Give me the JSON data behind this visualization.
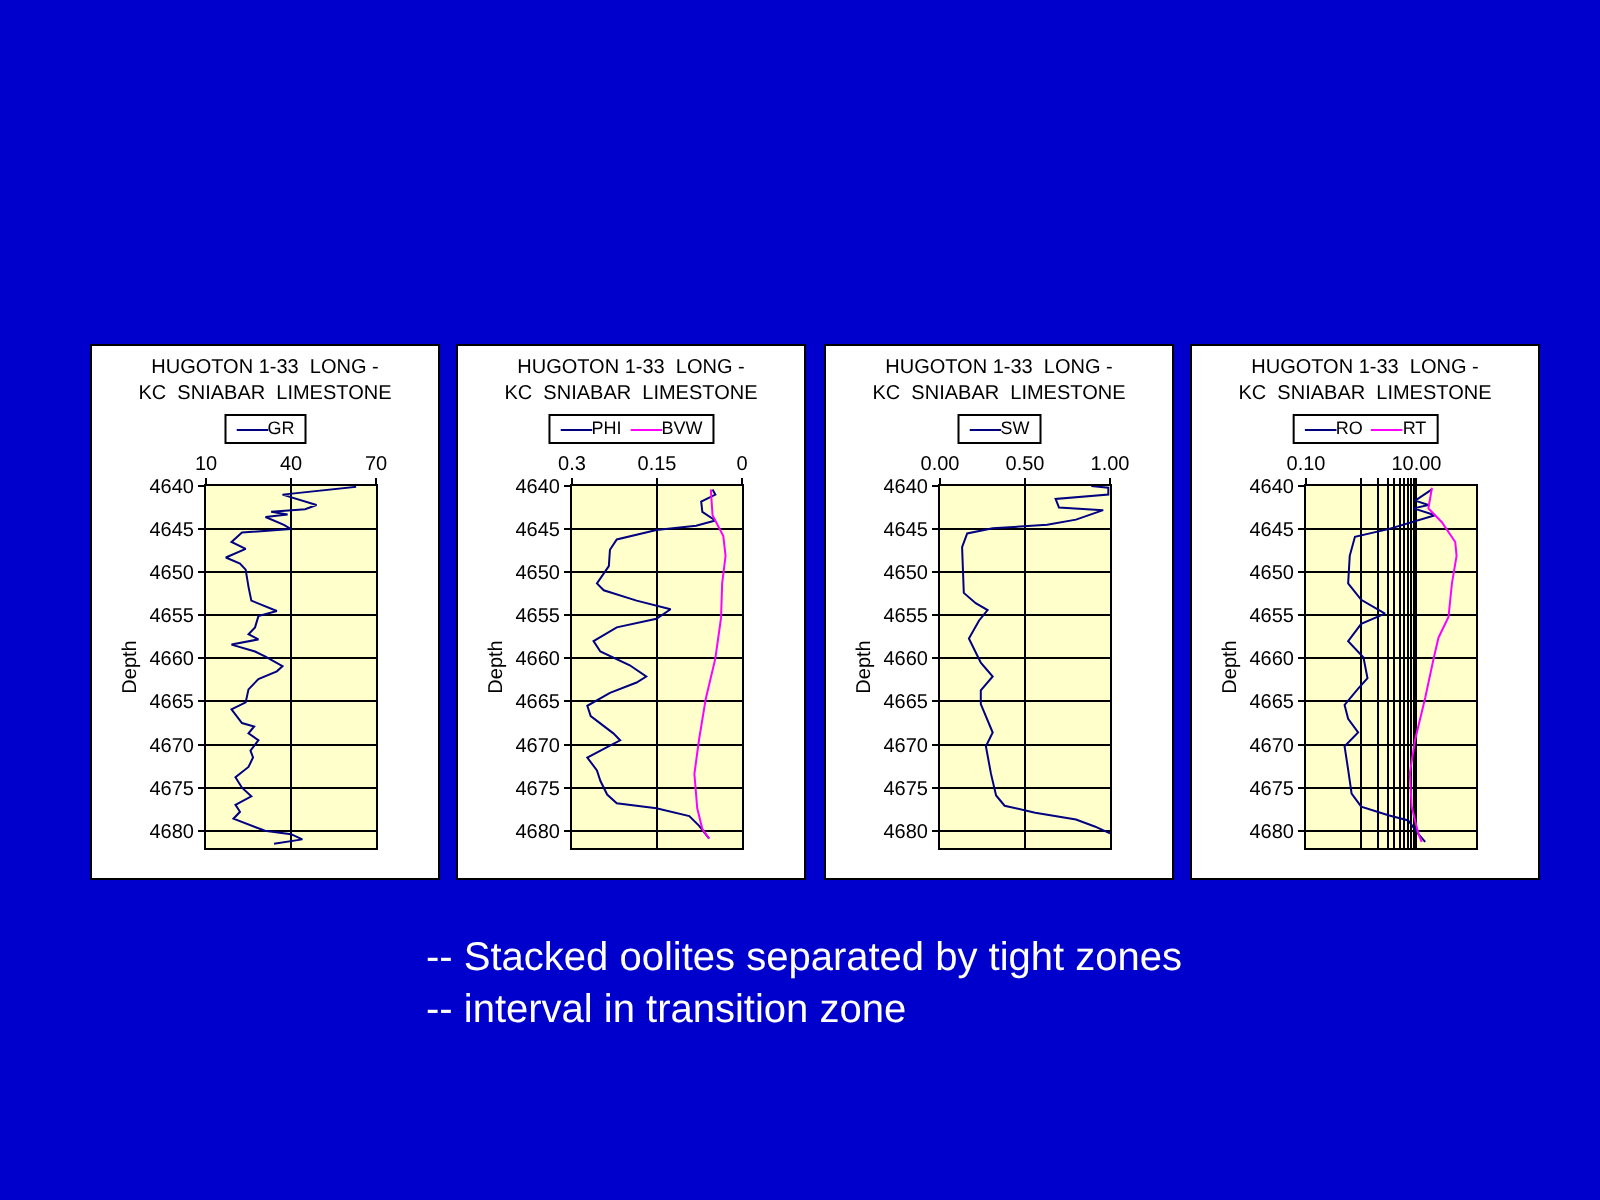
{
  "chart_data": [
    {
      "type": "line",
      "title": "HUGOTON 1-33  LONG -\nKC  SNIABAR  LIMESTONE",
      "ylabel": "Depth",
      "legend": "top",
      "grid": true,
      "xlim": [
        10,
        70
      ],
      "xticks": [
        10,
        40,
        70
      ],
      "ylim": [
        4682,
        4640
      ],
      "yticks": [
        4640,
        4645,
        4650,
        4655,
        4660,
        4665,
        4670,
        4675,
        4680
      ],
      "series": [
        {
          "name": "GR",
          "color": "#000080",
          "x": [
            63,
            37,
            49,
            45,
            33,
            38.8,
            31,
            37.5,
            40,
            22.7,
            19,
            24,
            17,
            22,
            24,
            25,
            26,
            35,
            28.5,
            27.3,
            25,
            28.5,
            19,
            27.3,
            31,
            37,
            35,
            28.5,
            25,
            24,
            19,
            22.7,
            27,
            25,
            28.5,
            25.7,
            26.6,
            25,
            20.4,
            22.7,
            26,
            20.4,
            22,
            19.7,
            30.8,
            40,
            44,
            34
          ],
          "values": [
            4640.1,
            4641,
            4642.2,
            4642.7,
            4643,
            4643.3,
            4643.6,
            4644.5,
            4645,
            4645.4,
            4646.5,
            4647.3,
            4648.3,
            4649,
            4649.7,
            4651.7,
            4653.3,
            4654.5,
            4655.1,
            4656.4,
            4657.2,
            4657.8,
            4658.4,
            4659.2,
            4659.8,
            4660.9,
            4661.5,
            4662.4,
            4663.6,
            4665.1,
            4665.9,
            4667.5,
            4667.9,
            4668.7,
            4669.5,
            4670.7,
            4671.5,
            4672.6,
            4673.8,
            4675,
            4676,
            4677,
            4677.8,
            4678.6,
            4680,
            4680.4,
            4681,
            4681.5
          ]
        }
      ]
    },
    {
      "type": "line",
      "title": "HUGOTON 1-33  LONG -\nKC  SNIABAR  LIMESTONE",
      "ylabel": "Depth",
      "legend": "top",
      "grid": true,
      "xlim": [
        0.3,
        0
      ],
      "xticks": [
        0.3,
        0.15,
        0
      ],
      "ylim": [
        4682,
        4640
      ],
      "yticks": [
        4640,
        4645,
        4650,
        4655,
        4660,
        4665,
        4670,
        4675,
        4680
      ],
      "series": [
        {
          "name": "PHI",
          "color": "#000080",
          "x": [
            0.052,
            0.047,
            0.072,
            0.07,
            0.047,
            0.081,
            0.151,
            0.221,
            0.233,
            0.235,
            0.256,
            0.244,
            0.186,
            0.126,
            0.151,
            0.221,
            0.262,
            0.25,
            0.198,
            0.169,
            0.186,
            0.233,
            0.273,
            0.267,
            0.227,
            0.215,
            0.238,
            0.273,
            0.256,
            0.25,
            0.238,
            0.221,
            0.151,
            0.093,
            0.076,
            0.058
          ],
          "values": [
            4640.4,
            4641,
            4641.8,
            4643,
            4644,
            4644.6,
            4645.1,
            4646.2,
            4647.4,
            4649.3,
            4651.3,
            4652.1,
            4653.3,
            4654.3,
            4655.4,
            4656.4,
            4658,
            4659.2,
            4660.8,
            4662.1,
            4662.8,
            4664,
            4665.5,
            4666.7,
            4668.7,
            4669.5,
            4670.3,
            4671.5,
            4673,
            4674.2,
            4675.8,
            4676.8,
            4677.4,
            4678.3,
            4679.4,
            4680.9
          ]
        },
        {
          "name": "BVW",
          "color": "#ff00ff",
          "x": [
            0.055,
            0.052,
            0.033,
            0.029,
            0.035,
            0.037,
            0.047,
            0.064,
            0.076,
            0.084,
            0.079,
            0.07,
            0.058
          ],
          "values": [
            4640.4,
            4643.4,
            4645.8,
            4648.1,
            4651.3,
            4655.3,
            4660,
            4664.7,
            4669.5,
            4673.4,
            4677.4,
            4679.8,
            4680.9
          ]
        }
      ]
    },
    {
      "type": "line",
      "title": "HUGOTON 1-33  LONG -\nKC  SNIABAR  LIMESTONE",
      "ylabel": "Depth",
      "legend": "top",
      "grid": true,
      "xlim": [
        0,
        1
      ],
      "xticks": [
        {
          "value": 0,
          "label": "0.00"
        },
        {
          "value": 0.5,
          "label": "0.50"
        },
        {
          "value": 1,
          "label": "1.00"
        }
      ],
      "ylim": [
        4682,
        4640
      ],
      "yticks": [
        4640,
        4645,
        4650,
        4655,
        4660,
        4665,
        4670,
        4675,
        4680
      ],
      "series": [
        {
          "name": "SW",
          "color": "#000080",
          "x": [
            0.89,
            0.99,
            0.99,
            0.68,
            0.7,
            0.96,
            0.8,
            0.63,
            0.31,
            0.16,
            0.13,
            0.14,
            0.21,
            0.28,
            0.23,
            0.17,
            0.24,
            0.31,
            0.24,
            0.24,
            0.31,
            0.27,
            0.3,
            0.33,
            0.38,
            0.56,
            0.8,
            0.91,
            1.0
          ],
          "values": [
            4640,
            4640.2,
            4641,
            4641.5,
            4642.5,
            4642.8,
            4643.9,
            4644.5,
            4644.9,
            4645.5,
            4647.1,
            4652.4,
            4653.6,
            4654.4,
            4655.6,
            4657.7,
            4660.5,
            4662.1,
            4663.7,
            4665.3,
            4668.6,
            4670.2,
            4673.4,
            4675.9,
            4677.1,
            4677.9,
            4678.7,
            4679.5,
            4680.3
          ]
        }
      ]
    },
    {
      "type": "line",
      "title": "HUGOTON 1-33  LONG -\nKC  SNIABAR  LIMESTONE",
      "ylabel": "Depth",
      "legend": "top",
      "grid": true,
      "log": "x",
      "xlim": [
        0.1,
        120
      ],
      "xticks": [
        {
          "value": 0.1,
          "label": "0.10"
        },
        {
          "value": 1,
          "label": null
        },
        {
          "value": 2,
          "label": null
        },
        {
          "value": 3,
          "label": null
        },
        {
          "value": 4,
          "label": null
        },
        {
          "value": 5,
          "label": null
        },
        {
          "value": 6,
          "label": null
        },
        {
          "value": 7,
          "label": null
        },
        {
          "value": 8,
          "label": null
        },
        {
          "value": 9,
          "label": null
        },
        {
          "value": 10,
          "label": "10.00"
        }
      ],
      "ylim": [
        4682,
        4640
      ],
      "yticks": [
        4640,
        4645,
        4650,
        4655,
        4660,
        4665,
        4670,
        4675,
        4680
      ],
      "series": [
        {
          "name": "RO",
          "color": "#000080",
          "x": [
            19.1,
            9.5,
            16.5,
            8.9,
            21.8,
            3.1,
            0.77,
            0.62,
            0.58,
            1.0,
            2.7,
            1.0,
            0.58,
            1.1,
            1.3,
            0.88,
            0.5,
            0.58,
            0.88,
            0.5,
            0.58,
            0.67,
            1.0,
            3.1,
            7.1,
            10.9,
            14.4
          ],
          "values": [
            4640.4,
            4641.7,
            4642.2,
            4642.6,
            4643.4,
            4645,
            4645.9,
            4648.1,
            4651.3,
            4653.2,
            4654.8,
            4656,
            4658,
            4659.9,
            4662.3,
            4663.5,
            4665.4,
            4667,
            4668.6,
            4670.2,
            4672.9,
            4675.7,
            4677.2,
            4678.2,
            4678.8,
            4680.4,
            4681.3
          ]
        },
        {
          "name": "RT",
          "color": "#ff00ff",
          "x": [
            19.1,
            16.5,
            28.9,
            50.5,
            53.4,
            44,
            38.1,
            25.1,
            20.7,
            14.4,
            9.5,
            7.6,
            8.2,
            10.9,
            12.5
          ],
          "values": [
            4640.2,
            4642.6,
            4644.2,
            4646.5,
            4648.1,
            4651.3,
            4655.2,
            4657.6,
            4659.9,
            4664.6,
            4669.4,
            4673.3,
            4677.2,
            4680.4,
            4681.3
          ]
        }
      ]
    },
    {
      "type": "other",
      "annotations": [
        "-- Stacked oolites separated by tight zones",
        "-- interval in transition zone"
      ]
    }
  ]
}
